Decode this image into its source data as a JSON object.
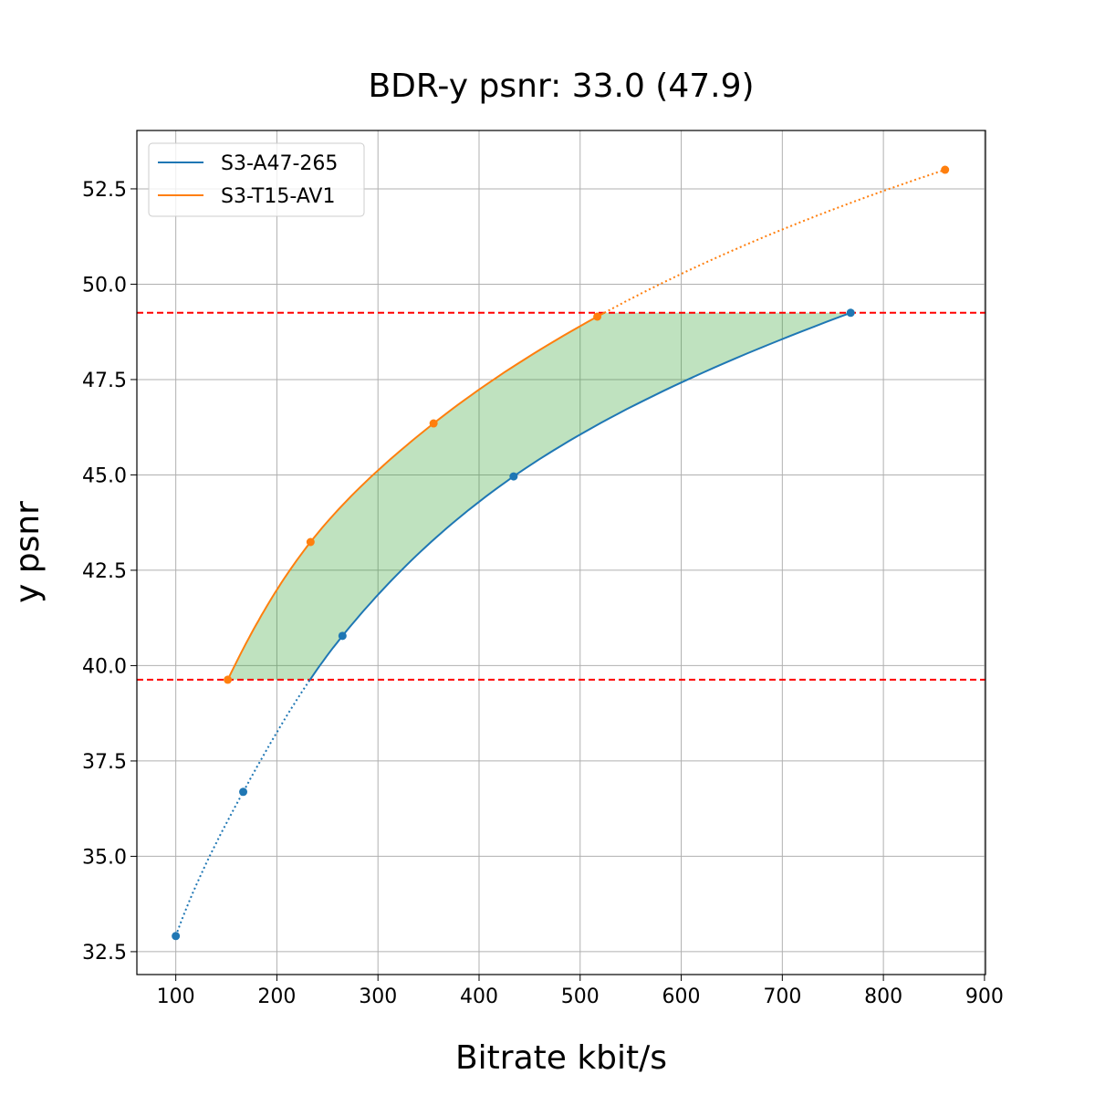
{
  "chart_data": {
    "type": "line",
    "title": "BDR-y psnr: 33.0 (47.9)",
    "xlabel": "Bitrate kbit/s",
    "ylabel": "y psnr",
    "xlim": [
      61.5,
      901
    ],
    "ylim": [
      31.9,
      54.03
    ],
    "xticks": [
      100,
      200,
      300,
      400,
      500,
      600,
      700,
      800,
      900
    ],
    "xtick_labels": [
      "100",
      "200",
      "300",
      "400",
      "500",
      "600",
      "700",
      "800",
      "900"
    ],
    "yticks": [
      32.5,
      35.0,
      37.5,
      40.0,
      42.5,
      45.0,
      47.5,
      50.0,
      52.5
    ],
    "ytick_labels": [
      "32.5",
      "35.0",
      "37.5",
      "40.0",
      "42.5",
      "45.0",
      "47.5",
      "50.0",
      "52.5"
    ],
    "grid": true,
    "legend_placement": "top-left",
    "series": [
      {
        "name": "S3-A47-265",
        "color": "#1f77b4",
        "x": [
          100,
          166.7,
          264.9,
          434.2,
          767.6
        ],
        "y": [
          32.91,
          36.69,
          40.78,
          44.96,
          49.25
        ]
      },
      {
        "name": "S3-T15-AV1",
        "color": "#ff7f0e",
        "x": [
          151.4,
          233.3,
          355.0,
          517.0,
          861.0
        ],
        "y": [
          39.63,
          43.24,
          46.35,
          49.15,
          53.0
        ]
      }
    ],
    "reference_lines": {
      "y": [
        39.63,
        49.25
      ],
      "color": "#ff0000",
      "style": "dashed"
    },
    "fill_between": {
      "color": "#2ca02c",
      "alpha": 0.3,
      "y_range": [
        39.63,
        49.25
      ]
    }
  }
}
